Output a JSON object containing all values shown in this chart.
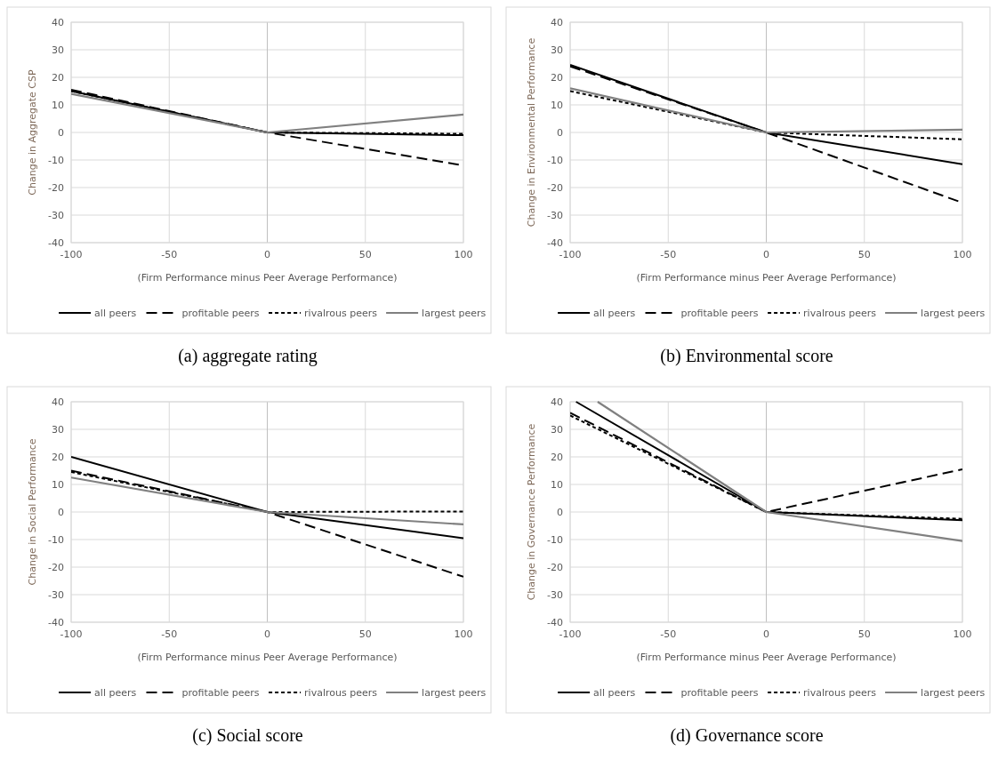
{
  "chart_data": [
    {
      "type": "line",
      "title": "(a) aggregate rating",
      "xlabel": "(Firm Performance minus Peer Average Performance)",
      "ylabel": "Change in Aggregate CSP",
      "x": [
        -100,
        0,
        100
      ],
      "xlim": [
        -100,
        100
      ],
      "xticks": [
        -100,
        -50,
        0,
        50,
        100
      ],
      "ylim": [
        -40,
        40
      ],
      "yticks": [
        -40,
        -30,
        -20,
        -10,
        0,
        10,
        20,
        30,
        40
      ],
      "grid": true,
      "legend": "bottom",
      "marker": "none",
      "series": [
        {
          "name": "all peers",
          "color": "#000000",
          "line_style": "solid",
          "values": [
            15,
            0,
            -1
          ]
        },
        {
          "name": "profitable peers",
          "color": "#000000",
          "line_style": "dashed",
          "values": [
            15.5,
            0,
            -12
          ]
        },
        {
          "name": "rivalrous peers",
          "color": "#000000",
          "line_style": "dotted",
          "values": [
            15,
            0,
            -0.5
          ]
        },
        {
          "name": "largest peers",
          "color": "#808080",
          "line_style": "solid",
          "values": [
            14,
            0,
            6.5
          ]
        }
      ]
    },
    {
      "type": "line",
      "title": "(b) Environmental score",
      "xlabel": "(Firm Performance minus Peer Average Performance)",
      "ylabel": "Change in Environmental Performance",
      "x": [
        -100,
        0,
        100
      ],
      "xlim": [
        -100,
        100
      ],
      "xticks": [
        -100,
        -50,
        0,
        50,
        100
      ],
      "ylim": [
        -40,
        40
      ],
      "yticks": [
        -40,
        -30,
        -20,
        -10,
        0,
        10,
        20,
        30,
        40
      ],
      "grid": true,
      "legend": "bottom",
      "marker": "none",
      "series": [
        {
          "name": "all peers",
          "color": "#000000",
          "line_style": "solid",
          "values": [
            24.5,
            0,
            -11.5
          ]
        },
        {
          "name": "profitable peers",
          "color": "#000000",
          "line_style": "dashed",
          "values": [
            24,
            0,
            -25.5
          ]
        },
        {
          "name": "rivalrous peers",
          "color": "#000000",
          "line_style": "dotted",
          "values": [
            15,
            0,
            -2.5
          ]
        },
        {
          "name": "largest peers",
          "color": "#808080",
          "line_style": "solid",
          "values": [
            16,
            0,
            1
          ]
        }
      ]
    },
    {
      "type": "line",
      "title": "(c) Social score",
      "xlabel": "(Firm Performance minus Peer Average Performance)",
      "ylabel": "Change in Social Performance",
      "x": [
        -100,
        0,
        100
      ],
      "xlim": [
        -100,
        100
      ],
      "xticks": [
        -100,
        -50,
        0,
        50,
        100
      ],
      "ylim": [
        -40,
        40
      ],
      "yticks": [
        -40,
        -30,
        -20,
        -10,
        0,
        10,
        20,
        30,
        40
      ],
      "grid": true,
      "legend": "bottom",
      "marker": "none",
      "series": [
        {
          "name": "all peers",
          "color": "#000000",
          "line_style": "solid",
          "values": [
            20,
            0,
            -9.5
          ]
        },
        {
          "name": "profitable peers",
          "color": "#000000",
          "line_style": "dashed",
          "values": [
            15,
            0,
            -23.5
          ]
        },
        {
          "name": "rivalrous peers",
          "color": "#000000",
          "line_style": "dotted",
          "values": [
            14.5,
            0,
            0.2
          ]
        },
        {
          "name": "largest peers",
          "color": "#808080",
          "line_style": "solid",
          "values": [
            12.5,
            0,
            -4.5
          ]
        }
      ]
    },
    {
      "type": "line",
      "title": "(d) Governance score",
      "xlabel": "(Firm Performance minus Peer Average Performance)",
      "ylabel": "Change in Governance Performance",
      "x": [
        -100,
        0,
        100
      ],
      "xlim": [
        -100,
        100
      ],
      "xticks": [
        -100,
        -50,
        0,
        50,
        100
      ],
      "ylim": [
        -40,
        40
      ],
      "yticks": [
        -40,
        -30,
        -20,
        -10,
        0,
        10,
        20,
        30,
        40
      ],
      "grid": true,
      "legend": "bottom",
      "marker": "none",
      "series": [
        {
          "name": "all peers",
          "color": "#000000",
          "line_style": "solid",
          "x": [
            -97,
            0,
            100
          ],
          "values": [
            40,
            0,
            -3
          ]
        },
        {
          "name": "profitable peers",
          "color": "#000000",
          "line_style": "dashed",
          "values": [
            36,
            0,
            15.5
          ]
        },
        {
          "name": "rivalrous peers",
          "color": "#000000",
          "line_style": "dotted",
          "values": [
            35,
            0,
            -2.5
          ]
        },
        {
          "name": "largest peers",
          "color": "#808080",
          "line_style": "solid",
          "x": [
            -86,
            0,
            100
          ],
          "values": [
            40,
            0,
            -10.5
          ]
        }
      ]
    }
  ]
}
